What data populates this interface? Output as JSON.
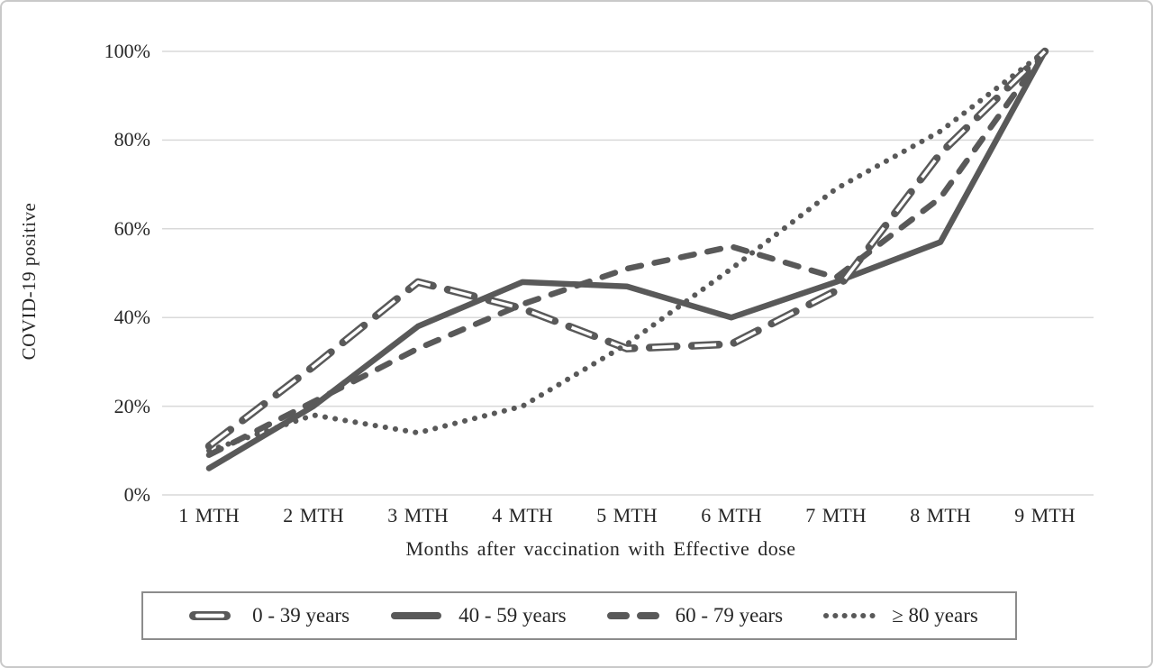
{
  "chart_data": {
    "type": "line",
    "title": "",
    "xlabel": "Months after vaccination with Effective dose",
    "ylabel": "COVID-19 positive",
    "categories": [
      "1 MTH",
      "2 MTH",
      "3 MTH",
      "4 MTH",
      "5 MTH",
      "6 MTH",
      "7 MTH",
      "8 MTH",
      "9 MTH"
    ],
    "y_tick_values": [
      0,
      20,
      40,
      60,
      80,
      100
    ],
    "y_tick_labels": [
      "0%",
      "20%",
      "40%",
      "60%",
      "80%",
      "100%"
    ],
    "ylim": [
      0,
      100
    ],
    "grid": "horizontal",
    "legend_position": "bottom",
    "colors": {
      "line": "#595959",
      "gridline": "#d9d9d9",
      "text": "#262626",
      "legend_border": "#8c8c8c",
      "background": "#ffffff"
    },
    "series": [
      {
        "name": "0 - 39 years",
        "style": "outlined-dash",
        "values": [
          11,
          29,
          48,
          42,
          33,
          34,
          46,
          77,
          100
        ]
      },
      {
        "name": "40 - 59 years",
        "style": "solid",
        "values": [
          6,
          20,
          38,
          48,
          47,
          40,
          48,
          57,
          100
        ]
      },
      {
        "name": "60 - 79 years",
        "style": "dashed",
        "values": [
          9,
          21,
          33,
          43,
          51,
          56,
          49,
          67,
          100
        ]
      },
      {
        "name": "≥ 80 years",
        "style": "dotted",
        "values": [
          10,
          18,
          14,
          20,
          34,
          51,
          69,
          82,
          100
        ]
      }
    ]
  }
}
